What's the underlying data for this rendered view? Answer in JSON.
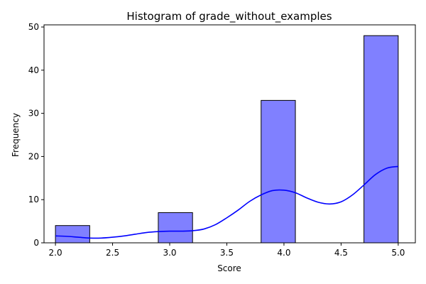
{
  "chart_data": {
    "type": "bar",
    "title": "Histogram of grade_without_examples",
    "xlabel": "Score",
    "ylabel": "Frequency",
    "xlim": [
      1.9,
      5.15
    ],
    "ylim": [
      0,
      50.5
    ],
    "x_ticks": [
      2.0,
      2.5,
      3.0,
      3.5,
      4.0,
      4.5,
      5.0
    ],
    "x_tick_labels": [
      "2.0",
      "2.5",
      "3.0",
      "3.5",
      "4.0",
      "4.5",
      "5.0"
    ],
    "y_ticks": [
      0,
      10,
      20,
      30,
      40,
      50
    ],
    "y_tick_labels": [
      "0",
      "10",
      "20",
      "30",
      "40",
      "50"
    ],
    "bins": [
      {
        "start": 2.0,
        "end": 2.3,
        "count": 4
      },
      {
        "start": 2.3,
        "end": 2.6,
        "count": 0
      },
      {
        "start": 2.6,
        "end": 2.9,
        "count": 0
      },
      {
        "start": 2.9,
        "end": 3.2,
        "count": 7
      },
      {
        "start": 3.2,
        "end": 3.5,
        "count": 0
      },
      {
        "start": 3.5,
        "end": 3.8,
        "count": 0
      },
      {
        "start": 3.8,
        "end": 4.1,
        "count": 33
      },
      {
        "start": 4.1,
        "end": 4.4,
        "count": 0
      },
      {
        "start": 4.4,
        "end": 4.7,
        "count": 0
      },
      {
        "start": 4.7,
        "end": 5.0,
        "count": 48
      }
    ],
    "kde": {
      "x": [
        2.0,
        2.1,
        2.2,
        2.3,
        2.4,
        2.5,
        2.6,
        2.7,
        2.8,
        2.9,
        3.0,
        3.1,
        3.2,
        3.3,
        3.4,
        3.5,
        3.6,
        3.7,
        3.8,
        3.9,
        4.0,
        4.1,
        4.2,
        4.3,
        4.4,
        4.5,
        4.6,
        4.7,
        4.8,
        4.9,
        5.0
      ],
      "y": [
        1.6,
        1.5,
        1.3,
        1.1,
        1.1,
        1.3,
        1.6,
        2.0,
        2.4,
        2.6,
        2.7,
        2.7,
        2.8,
        3.2,
        4.2,
        5.8,
        7.6,
        9.6,
        11.1,
        12.1,
        12.2,
        11.6,
        10.4,
        9.4,
        9.0,
        9.5,
        11.1,
        13.4,
        15.8,
        17.3,
        17.7
      ]
    },
    "bar_color": "#8080ff",
    "bar_edge_color": "#000000",
    "kde_color": "#0000ff",
    "grid": false,
    "legend": "none"
  }
}
